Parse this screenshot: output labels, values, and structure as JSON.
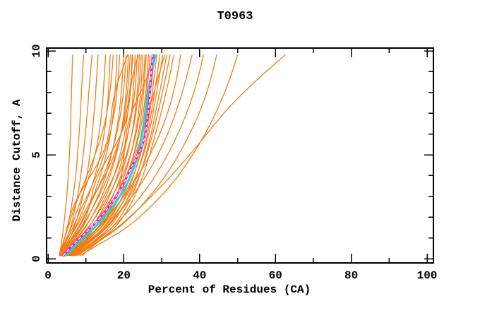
{
  "chart_data": {
    "type": "line",
    "title": "T0963",
    "xlabel": "Percent of Residues (CA)",
    "ylabel": "Distance Cutoff, A",
    "xlim": [
      0,
      100
    ],
    "ylim": [
      0,
      10
    ],
    "grid": false,
    "legend": "none",
    "frame": "box-with-inward-ticks",
    "x_major_ticks": [
      0,
      20,
      40,
      60,
      80,
      100
    ],
    "x_minor_ticks": [
      10,
      30,
      50,
      70,
      90
    ],
    "y_major_ticks": [
      0,
      5,
      10
    ],
    "y_minor_ticks": [
      1,
      2,
      3,
      4,
      6,
      7,
      8,
      9
    ],
    "colors": {
      "model": "#f07d16",
      "highlight_cyan": "#00e0e0",
      "highlight_magenta": "#ff00dc",
      "overlay_dash": "#ffffff",
      "frame": "#000000"
    },
    "cutoff_levels": [
      0.15,
      0.8,
      1.5,
      2.5,
      3.5,
      4.5,
      5.5,
      6.5,
      7.5,
      8.6,
      9.8
    ],
    "series": [
      {
        "name": "line-01",
        "color": "#f07d16",
        "width": 1.3,
        "x": [
          3.0,
          3.6,
          4.1,
          4.7,
          5.2,
          5.5,
          5.8,
          6.0,
          6.1,
          6.3,
          6.5
        ]
      },
      {
        "name": "line-02",
        "color": "#f07d16",
        "width": 1.3,
        "x": [
          3.0,
          4.1,
          5.2,
          6.2,
          7.0,
          7.6,
          8.0,
          8.4,
          8.7,
          9.0,
          9.4
        ]
      },
      {
        "name": "line-03",
        "color": "#f07d16",
        "width": 1.3,
        "x": [
          3.3,
          4.6,
          6.0,
          7.3,
          8.3,
          9.0,
          9.6,
          10.1,
          10.6,
          11.0,
          11.6
        ]
      },
      {
        "name": "line-04",
        "color": "#f07d16",
        "width": 1.3,
        "x": [
          3.6,
          5.3,
          6.9,
          8.6,
          9.8,
          10.7,
          11.4,
          11.9,
          12.4,
          12.8,
          13.2
        ]
      },
      {
        "name": "line-05",
        "color": "#f07d16",
        "width": 1.3,
        "x": [
          3.1,
          4.4,
          6.2,
          8.0,
          10.0,
          11.8,
          13.0,
          13.9,
          14.4,
          14.8,
          15.2
        ]
      },
      {
        "name": "line-06",
        "color": "#f07d16",
        "width": 1.3,
        "x": [
          3.4,
          5.1,
          7.2,
          9.6,
          11.6,
          13.2,
          14.4,
          15.2,
          15.8,
          16.1,
          16.4
        ]
      },
      {
        "name": "line-07",
        "color": "#f07d16",
        "width": 1.3,
        "x": [
          3.0,
          4.0,
          5.3,
          7.0,
          9.2,
          11.4,
          13.4,
          15.0,
          16.0,
          16.7,
          17.2
        ]
      },
      {
        "name": "line-08",
        "color": "#f07d16",
        "width": 1.3,
        "x": [
          3.7,
          5.8,
          8.3,
          10.9,
          13.0,
          14.7,
          16.0,
          16.9,
          17.5,
          17.9,
          18.2
        ]
      },
      {
        "name": "line-09",
        "color": "#f07d16",
        "width": 1.3,
        "x": [
          3.2,
          4.7,
          6.6,
          9.0,
          11.6,
          13.9,
          15.7,
          17.0,
          17.9,
          18.5,
          18.9
        ]
      },
      {
        "name": "line-10",
        "color": "#f07d16",
        "width": 1.3,
        "x": [
          4.0,
          6.4,
          9.2,
          12.0,
          14.3,
          16.1,
          17.4,
          18.4,
          19.1,
          19.6,
          19.9
        ]
      },
      {
        "name": "line-11",
        "color": "#f07d16",
        "width": 1.3,
        "x": [
          3.5,
          5.5,
          8.0,
          10.8,
          13.5,
          15.8,
          17.5,
          18.7,
          19.6,
          20.2,
          20.6
        ]
      },
      {
        "name": "line-12",
        "color": "#f07d16",
        "width": 1.3,
        "x": [
          4.3,
          7.0,
          10.0,
          13.0,
          15.4,
          17.3,
          18.7,
          19.7,
          20.4,
          20.9,
          21.2
        ]
      },
      {
        "name": "line-13",
        "color": "#f07d16",
        "width": 1.3,
        "x": [
          3.8,
          6.1,
          8.9,
          12.0,
          14.8,
          17.0,
          18.6,
          19.9,
          20.7,
          21.3,
          21.7
        ]
      },
      {
        "name": "line-14",
        "color": "#f07d16",
        "width": 1.3,
        "x": [
          4.6,
          7.6,
          10.9,
          14.0,
          16.5,
          18.3,
          19.7,
          20.7,
          21.4,
          21.9,
          22.2
        ]
      },
      {
        "name": "line-15",
        "color": "#f07d16",
        "width": 1.3,
        "x": [
          3.3,
          5.0,
          7.4,
          10.4,
          13.6,
          16.4,
          18.5,
          20.1,
          21.2,
          21.9,
          22.4
        ]
      },
      {
        "name": "line-16",
        "color": "#f07d16",
        "width": 1.3,
        "x": [
          4.9,
          8.2,
          11.7,
          14.9,
          17.4,
          19.2,
          20.6,
          21.6,
          22.3,
          22.7,
          23.0
        ]
      },
      {
        "name": "line-17",
        "color": "#f07d16",
        "width": 1.3,
        "x": [
          4.1,
          6.7,
          9.8,
          13.2,
          16.2,
          18.6,
          20.4,
          21.7,
          22.6,
          23.2,
          23.6
        ]
      },
      {
        "name": "line-18",
        "color": "#f07d16",
        "width": 1.3,
        "x": [
          5.2,
          8.8,
          12.5,
          15.8,
          18.3,
          20.2,
          21.6,
          22.6,
          23.3,
          23.8,
          24.1
        ]
      },
      {
        "name": "line-19",
        "color": "#f07d16",
        "width": 1.3,
        "x": [
          4.4,
          7.3,
          10.7,
          14.3,
          17.4,
          19.8,
          21.5,
          22.8,
          23.6,
          24.2,
          24.6
        ]
      },
      {
        "name": "line-20",
        "color": "#f07d16",
        "width": 1.3,
        "x": [
          5.5,
          9.4,
          13.3,
          16.7,
          19.2,
          21.1,
          22.5,
          23.5,
          24.2,
          24.7,
          25.0
        ]
      },
      {
        "name": "line-21",
        "color": "#f07d16",
        "width": 1.3,
        "x": [
          4.7,
          7.9,
          11.6,
          15.4,
          18.5,
          20.9,
          22.6,
          23.8,
          24.6,
          25.2,
          25.6
        ]
      },
      {
        "name": "line-22",
        "color": "#f07d16",
        "width": 1.3,
        "x": [
          5.8,
          10.0,
          14.1,
          17.6,
          20.1,
          21.9,
          23.3,
          24.3,
          25.0,
          25.5,
          25.9
        ]
      },
      {
        "name": "line-23",
        "color": "#f07d16",
        "width": 1.3,
        "x": [
          5.0,
          8.5,
          12.5,
          16.4,
          19.5,
          21.8,
          23.5,
          24.7,
          25.5,
          26.1,
          26.5
        ]
      },
      {
        "name": "line-24",
        "color": "#f07d16",
        "width": 1.3,
        "x": [
          6.1,
          10.6,
          14.9,
          18.4,
          20.9,
          22.7,
          24.1,
          25.1,
          25.8,
          26.4,
          26.9
        ]
      },
      {
        "name": "line-25",
        "color": "#f07d16",
        "width": 1.3,
        "x": [
          5.3,
          9.1,
          13.4,
          17.4,
          20.5,
          22.8,
          24.4,
          25.6,
          26.4,
          27.0,
          27.5
        ]
      },
      {
        "name": "line-26",
        "color": "#f07d16",
        "width": 1.3,
        "x": [
          6.4,
          11.2,
          15.7,
          19.2,
          21.7,
          23.5,
          24.9,
          25.9,
          26.7,
          27.4,
          28.1
        ]
      },
      {
        "name": "line-27",
        "color": "#f07d16",
        "width": 1.3,
        "x": [
          5.6,
          9.7,
          14.2,
          18.3,
          21.4,
          23.6,
          25.2,
          26.4,
          27.2,
          27.9,
          28.7
        ]
      },
      {
        "name": "line-28",
        "color": "#f07d16",
        "width": 1.3,
        "x": [
          6.7,
          11.8,
          16.4,
          20.0,
          22.5,
          24.3,
          25.7,
          26.8,
          27.7,
          28.6,
          29.5
        ]
      },
      {
        "name": "line-29",
        "color": "#f07d16",
        "width": 1.3,
        "x": [
          5.9,
          10.3,
          15.0,
          19.1,
          22.2,
          24.4,
          26.0,
          27.2,
          28.2,
          29.2,
          30.3
        ]
      },
      {
        "name": "line-30",
        "color": "#f07d16",
        "width": 1.3,
        "x": [
          7.0,
          12.4,
          17.2,
          20.8,
          23.3,
          25.1,
          26.6,
          27.8,
          28.9,
          30.1,
          31.3
        ]
      },
      {
        "name": "line-31",
        "color": "#f07d16",
        "width": 1.3,
        "x": [
          6.2,
          10.9,
          15.8,
          19.9,
          23.0,
          25.2,
          26.9,
          28.3,
          29.6,
          30.9,
          32.2
        ]
      },
      {
        "name": "line-32",
        "color": "#f07d16",
        "width": 1.3,
        "x": [
          7.3,
          13.0,
          17.9,
          21.6,
          24.1,
          26.0,
          27.6,
          29.1,
          30.5,
          31.9,
          33.2
        ]
      },
      {
        "name": "line-33",
        "color": "#f07d16",
        "width": 1.3,
        "x": [
          6.0,
          9.5,
          13.5,
          18.0,
          22.0,
          25.5,
          28.3,
          30.6,
          32.4,
          33.9,
          35.0
        ]
      },
      {
        "name": "line-34",
        "color": "#f07d16",
        "width": 1.3,
        "x": [
          6.6,
          10.7,
          15.3,
          20.1,
          24.2,
          27.6,
          30.4,
          32.7,
          34.6,
          36.4,
          38.0
        ]
      },
      {
        "name": "line-35",
        "color": "#f07d16",
        "width": 1.3,
        "x": [
          7.2,
          11.9,
          17.1,
          22.3,
          26.6,
          30.1,
          33.0,
          35.5,
          37.6,
          39.5,
          41.0
        ]
      },
      {
        "name": "line-36",
        "color": "#f07d16",
        "width": 1.3,
        "x": [
          7.8,
          13.1,
          18.9,
          24.5,
          29.1,
          32.9,
          36.0,
          38.7,
          41.0,
          42.9,
          44.5
        ]
      },
      {
        "name": "line-37",
        "color": "#f07d16",
        "width": 1.3,
        "x": [
          8.4,
          14.5,
          21.0,
          27.2,
          32.3,
          36.4,
          39.9,
          42.9,
          45.5,
          47.9,
          50.0
        ]
      },
      {
        "name": "line-38",
        "color": "#f07d16",
        "width": 1.3,
        "x": [
          9.0,
          13.0,
          18.5,
          24.5,
          30.0,
          35.0,
          39.7,
          44.0,
          48.8,
          55.0,
          62.5
        ]
      },
      {
        "name": "line-39",
        "color": "#f07d16",
        "width": 1.3,
        "x": [
          3.0,
          5.6,
          9.0,
          11.0,
          12.0,
          14.5,
          18.0,
          20.5,
          21.5,
          22.0,
          23.8
        ]
      },
      {
        "name": "line-40",
        "color": "#f07d16",
        "width": 1.3,
        "x": [
          3.1,
          4.2,
          5.0,
          6.5,
          9.5,
          13.0,
          15.5,
          16.5,
          17.0,
          18.5,
          21.0
        ]
      },
      {
        "name": "line-41",
        "color": "#f07d16",
        "width": 1.3,
        "x": [
          4.5,
          8.5,
          13.5,
          17.5,
          19.0,
          19.8,
          20.3,
          21.0,
          23.0,
          26.0,
          28.0
        ]
      },
      {
        "name": "line-42",
        "color": "#f07d16",
        "width": 1.3,
        "x": [
          3.2,
          6.8,
          11.5,
          16.0,
          19.5,
          22.0,
          24.0,
          25.8,
          27.2,
          28.8,
          30.8
        ]
      },
      {
        "name": "highlight-cyan",
        "color": "#00e0e0",
        "width": 2.8,
        "x": [
          4.6,
          8.0,
          12.4,
          17.2,
          20.7,
          23.0,
          24.4,
          25.3,
          26.1,
          26.9,
          28.3
        ]
      },
      {
        "name": "highlight-magenta",
        "color": "#ff00dc",
        "width": 2.8,
        "x": [
          4.0,
          7.2,
          11.5,
          16.2,
          19.7,
          22.2,
          25.2,
          26.1,
          26.7,
          27.1,
          27.6
        ]
      },
      {
        "name": "highlight-magenta-white-dash",
        "color": "#ffffff",
        "width": 1.3,
        "dash": "4 4",
        "x": [
          4.0,
          7.2,
          11.5,
          16.2,
          19.7,
          22.2,
          25.2,
          26.1,
          26.7,
          27.1,
          27.6
        ]
      }
    ]
  }
}
